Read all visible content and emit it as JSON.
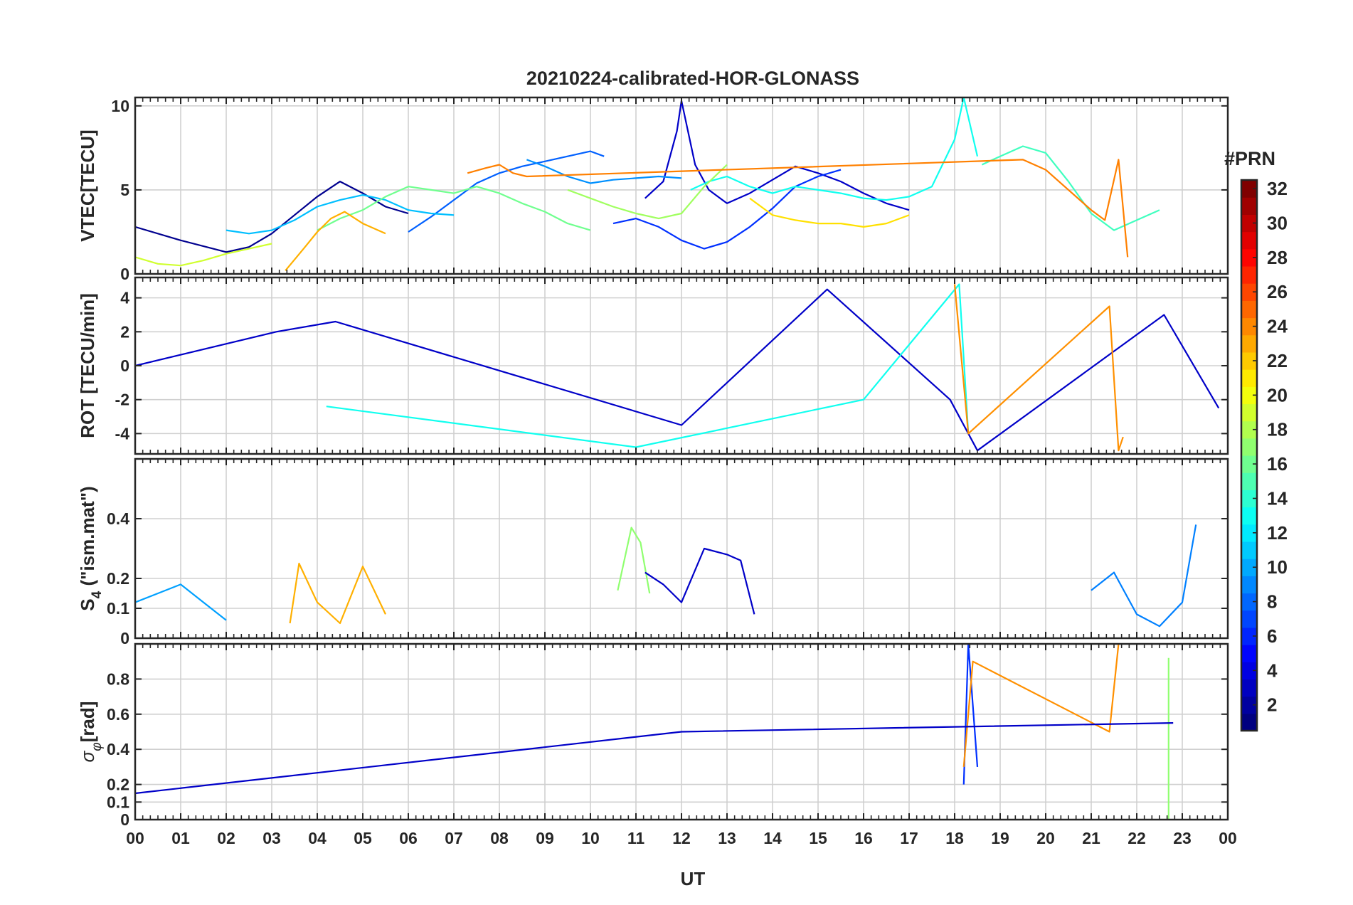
{
  "chart_data": {
    "type": "line",
    "title": "20210224-calibrated-HOR-GLONASS",
    "xlabel": "UT",
    "x_tick_labels": [
      "00",
      "01",
      "02",
      "03",
      "04",
      "05",
      "06",
      "07",
      "08",
      "09",
      "10",
      "11",
      "12",
      "13",
      "14",
      "15",
      "16",
      "17",
      "18",
      "19",
      "20",
      "21",
      "22",
      "23",
      "00"
    ],
    "x_range_hours": [
      0,
      24
    ],
    "grid": true,
    "colorbar": {
      "title": "#PRN",
      "range": [
        1,
        32
      ],
      "tick_labels": [
        "2",
        "4",
        "6",
        "8",
        "10",
        "12",
        "14",
        "16",
        "18",
        "20",
        "22",
        "24",
        "26",
        "28",
        "30",
        "32"
      ],
      "colormap": "jet"
    },
    "panels": [
      {
        "id": "vtec",
        "ylabel": "VTEC[TECU]",
        "ylim": [
          0,
          10.5
        ],
        "y_ticks": [
          0,
          5,
          10
        ],
        "y_tick_labels": [
          "0",
          "5",
          "10"
        ],
        "series": [
          {
            "prn": 1,
            "color": "#00008f",
            "x": [
              0.0,
              1.0,
              2.0,
              2.5,
              3.0,
              3.5,
              4.0,
              4.5,
              5.0,
              5.5,
              6.0
            ],
            "y": [
              2.8,
              2.0,
              1.3,
              1.6,
              2.4,
              3.5,
              4.6,
              5.5,
              4.8,
              4.0,
              3.6
            ]
          },
          {
            "prn": 2,
            "color": "#0000c8",
            "x": [
              11.2,
              11.6,
              11.9,
              12.0,
              12.3,
              12.6,
              13.0,
              13.5,
              14.0,
              14.5,
              15.0,
              15.5,
              16.0,
              16.5,
              17.0
            ],
            "y": [
              4.5,
              5.5,
              8.5,
              10.3,
              6.5,
              5.0,
              4.2,
              4.8,
              5.6,
              6.4,
              6.0,
              5.5,
              4.8,
              4.2,
              3.8
            ]
          },
          {
            "prn": 4,
            "color": "#0030ff",
            "x": [
              10.5,
              11.0,
              11.5,
              12.0,
              12.5,
              13.0,
              13.5,
              14.0,
              14.5,
              15.0,
              15.5
            ],
            "y": [
              3.0,
              3.3,
              2.8,
              2.0,
              1.5,
              1.9,
              2.8,
              3.9,
              5.2,
              5.8,
              6.2
            ]
          },
          {
            "prn": 6,
            "color": "#0060ff",
            "x": [
              6.0,
              6.5,
              7.0,
              7.5,
              8.0,
              8.5,
              9.0,
              9.5,
              10.0,
              10.3
            ],
            "y": [
              2.5,
              3.4,
              4.4,
              5.4,
              6.0,
              6.4,
              6.7,
              7.0,
              7.3,
              7.0
            ]
          },
          {
            "prn": 8,
            "color": "#0090ff",
            "x": [
              8.6,
              9.0,
              9.5,
              10.0,
              10.5,
              11.0,
              11.5,
              12.0
            ],
            "y": [
              6.8,
              6.4,
              5.8,
              5.4,
              5.6,
              5.7,
              5.8,
              5.7
            ]
          },
          {
            "prn": 10,
            "color": "#00bfff",
            "x": [
              2.0,
              2.5,
              3.0,
              3.5,
              4.0,
              4.5,
              5.0,
              5.5,
              6.0,
              6.5,
              7.0
            ],
            "y": [
              2.6,
              2.4,
              2.6,
              3.2,
              4.0,
              4.4,
              4.7,
              4.4,
              3.8,
              3.6,
              3.5
            ]
          },
          {
            "prn": 12,
            "color": "#10ffef",
            "x": [
              12.2,
              12.6,
              13.0,
              13.5,
              14.0,
              14.5,
              15.0,
              15.5,
              16.0,
              16.5,
              17.0,
              17.5,
              18.0,
              18.2,
              18.5
            ],
            "y": [
              5.0,
              5.5,
              5.8,
              5.2,
              4.8,
              5.2,
              5.0,
              4.8,
              4.5,
              4.4,
              4.6,
              5.2,
              8.0,
              10.5,
              7.0
            ]
          },
          {
            "prn": 14,
            "color": "#40ffbf",
            "x": [
              18.6,
              19.0,
              19.5,
              20.0,
              20.5,
              21.0,
              21.5,
              22.0,
              22.5
            ],
            "y": [
              6.5,
              7.0,
              7.6,
              7.2,
              5.5,
              3.6,
              2.6,
              3.2,
              3.8
            ]
          },
          {
            "prn": 16,
            "color": "#70ff8f",
            "x": [
              4.0,
              4.5,
              5.0,
              5.5,
              6.0,
              6.5,
              7.0,
              7.5,
              8.0,
              8.5,
              9.0,
              9.5,
              10.0
            ],
            "y": [
              2.6,
              3.3,
              3.8,
              4.6,
              5.2,
              5.0,
              4.8,
              5.2,
              4.8,
              4.2,
              3.7,
              3.0,
              2.6
            ]
          },
          {
            "prn": 18,
            "color": "#a0ff5f",
            "x": [
              9.5,
              10.0,
              10.5,
              11.0,
              11.5,
              12.0,
              12.5,
              13.0
            ],
            "y": [
              5.0,
              4.5,
              4.0,
              3.6,
              3.3,
              3.6,
              5.2,
              6.5
            ]
          },
          {
            "prn": 20,
            "color": "#d0ff2f",
            "x": [
              0.0,
              0.5,
              1.0,
              1.5,
              2.0,
              2.5,
              3.0
            ],
            "y": [
              1.0,
              0.6,
              0.5,
              0.8,
              1.2,
              1.5,
              1.8
            ]
          },
          {
            "prn": 21,
            "color": "#ffe000",
            "x": [
              13.5,
              14.0,
              14.5,
              15.0,
              15.5,
              16.0,
              16.5,
              17.0
            ],
            "y": [
              4.5,
              3.5,
              3.2,
              3.0,
              3.0,
              2.8,
              3.0,
              3.5
            ]
          },
          {
            "prn": 22,
            "color": "#ffb000",
            "x": [
              3.3,
              3.7,
              4.0,
              4.3,
              4.6,
              5.0,
              5.5
            ],
            "y": [
              0.2,
              1.5,
              2.5,
              3.3,
              3.7,
              3.0,
              2.4
            ]
          },
          {
            "prn": 24,
            "color": "#ff8000",
            "x": [
              7.3,
              7.7,
              8.0,
              8.3,
              8.6,
              19.5,
              20.0,
              20.5,
              21.0,
              21.3,
              21.6,
              21.8
            ],
            "y": [
              6.0,
              6.3,
              6.5,
              6.0,
              5.8,
              6.8,
              6.2,
              5.0,
              3.8,
              3.2,
              6.8,
              1.0
            ]
          }
        ]
      },
      {
        "id": "rot",
        "ylabel": "ROT [TECU/min]",
        "ylim": [
          -5.2,
          5.2
        ],
        "y_ticks": [
          -4,
          -2,
          0,
          2,
          4
        ],
        "y_tick_labels": [
          "-4",
          "-2",
          "0",
          "2",
          "4"
        ],
        "series": [
          {
            "prn": 2,
            "color": "#0000c8",
            "x": [
              0.0,
              3.1,
              4.4,
              12.0,
              15.2,
              17.9,
              18.5,
              22.6,
              23.8
            ],
            "y": [
              0.0,
              2.0,
              2.6,
              -3.5,
              4.5,
              -2.0,
              -5.0,
              3.0,
              -2.5
            ]
          },
          {
            "prn": 12,
            "color": "#10ffef",
            "x": [
              4.2,
              11.0,
              16.0,
              18.1,
              18.3
            ],
            "y": [
              -2.4,
              -4.8,
              -2.0,
              4.8,
              -4.0
            ]
          },
          {
            "prn": 23,
            "color": "#ff9000",
            "x": [
              18.0,
              18.3,
              21.4,
              21.6,
              21.7
            ],
            "y": [
              4.8,
              -4.0,
              3.5,
              -5.0,
              -4.2
            ]
          }
        ]
      },
      {
        "id": "s4",
        "ylabel": "S4 (\"ism.mat\")",
        "ylim": [
          0,
          0.6
        ],
        "y_ticks": [
          0,
          0.1,
          0.2,
          0.4
        ],
        "y_tick_labels": [
          "0",
          "0.1",
          "0.2",
          "0.4"
        ],
        "series": [
          {
            "prn": 11,
            "color": "#00a0ff",
            "x": [
              0.0,
              0.5,
              1.0,
              1.5,
              2.0
            ],
            "y": [
              0.12,
              0.15,
              0.18,
              0.12,
              0.06
            ]
          },
          {
            "prn": 22,
            "color": "#ffb000",
            "x": [
              3.4,
              3.6,
              4.0,
              4.5,
              5.0,
              5.5
            ],
            "y": [
              0.05,
              0.25,
              0.12,
              0.05,
              0.24,
              0.08
            ]
          },
          {
            "prn": 17,
            "color": "#90ff70",
            "x": [
              10.6,
              10.9,
              11.1,
              11.3
            ],
            "y": [
              0.16,
              0.37,
              0.32,
              0.15
            ]
          },
          {
            "prn": 2,
            "color": "#0000c8",
            "x": [
              11.2,
              11.6,
              12.0,
              12.5,
              13.0,
              13.3,
              13.6
            ],
            "y": [
              0.22,
              0.18,
              0.12,
              0.3,
              0.28,
              0.26,
              0.08
            ]
          },
          {
            "prn": 9,
            "color": "#0080ff",
            "x": [
              21.0,
              21.5,
              22.0,
              22.5,
              23.0,
              23.3
            ],
            "y": [
              0.16,
              0.22,
              0.08,
              0.04,
              0.12,
              0.38
            ]
          }
        ]
      },
      {
        "id": "sigma_phi",
        "ylabel": "σφ[rad]",
        "ylim": [
          0,
          1.0
        ],
        "y_ticks": [
          0,
          0.1,
          0.2,
          0.4,
          0.6,
          0.8
        ],
        "y_tick_labels": [
          "0",
          "0.1",
          "0.2",
          "0.4",
          "0.6",
          "0.8"
        ],
        "series": [
          {
            "prn": 4,
            "color": "#0030ff",
            "x": [
              18.2,
              18.3,
              18.5
            ],
            "y": [
              0.2,
              1.0,
              0.3
            ]
          },
          {
            "prn": 23,
            "color": "#ff9000",
            "x": [
              18.2,
              18.4,
              21.4,
              21.6
            ],
            "y": [
              0.3,
              0.9,
              0.5,
              1.0
            ]
          },
          {
            "prn": 17,
            "color": "#90ff70",
            "x": [
              22.7
            ],
            "y": [
              0.92
            ]
          },
          {
            "prn": 2,
            "color": "#0000c8",
            "x": [
              0.0,
              12.0,
              22.8
            ],
            "y": [
              0.15,
              0.5,
              0.55
            ]
          }
        ]
      }
    ]
  }
}
